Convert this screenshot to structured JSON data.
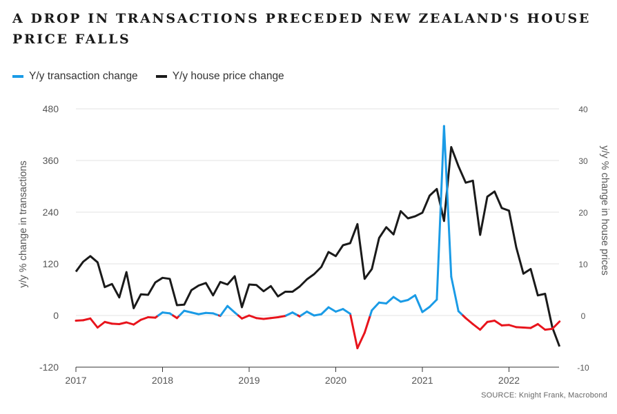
{
  "title": "A DROP IN TRANSACTIONS PRECEDED NEW ZEALAND'S HOUSE PRICE FALLS",
  "source": "SOURCE: Knight Frank, Macrobond",
  "colors": {
    "transactions_positive": "#1a9be6",
    "transactions_negative": "#e8141c",
    "house_prices": "#1a1a1a",
    "grid": "#e3e3e3"
  },
  "chart_data": {
    "type": "line",
    "title": "A DROP IN TRANSACTIONS PRECEDED NEW ZEALAND'S HOUSE PRICE FALLS",
    "legend": [
      {
        "name": "Y/y transaction change",
        "color": "#1a9be6"
      },
      {
        "name": "Y/y house price change",
        "color": "#1a1a1a"
      }
    ],
    "legend_position": "top-left",
    "grid": true,
    "x_ticks": [
      "2017",
      "2018",
      "2019",
      "2020",
      "2021",
      "2022"
    ],
    "ylabel_left": "y/y % change in transactions",
    "ylabel_right": "y/y % change in house prices",
    "ylim_left": [
      -120,
      480
    ],
    "ylim_right": [
      -10,
      40
    ],
    "yticks_left": [
      "480",
      "360",
      "240",
      "120",
      "0",
      "-120"
    ],
    "yticks_right": [
      "40",
      "30",
      "20",
      "10",
      "0",
      "-10"
    ],
    "series": [
      {
        "name": "Y/y transaction change",
        "axis": "left",
        "x": [
          "2017-01",
          "2017-02",
          "2017-03",
          "2017-04",
          "2017-05",
          "2017-06",
          "2017-07",
          "2017-08",
          "2017-09",
          "2017-10",
          "2017-11",
          "2017-12",
          "2018-01",
          "2018-02",
          "2018-03",
          "2018-04",
          "2018-05",
          "2018-06",
          "2018-07",
          "2018-08",
          "2018-09",
          "2018-10",
          "2018-11",
          "2018-12",
          "2019-01",
          "2019-02",
          "2019-03",
          "2019-04",
          "2019-05",
          "2019-06",
          "2019-07",
          "2019-08",
          "2019-09",
          "2019-10",
          "2019-11",
          "2019-12",
          "2020-01",
          "2020-02",
          "2020-03",
          "2020-04",
          "2020-05",
          "2020-06",
          "2020-07",
          "2020-08",
          "2020-09",
          "2020-10",
          "2020-11",
          "2020-12",
          "2021-01",
          "2021-02",
          "2021-03",
          "2021-04",
          "2021-05",
          "2021-06",
          "2021-07",
          "2021-08",
          "2021-09",
          "2021-10",
          "2021-11",
          "2021-12",
          "2022-01",
          "2022-02",
          "2022-03",
          "2022-04",
          "2022-05",
          "2022-06",
          "2022-07",
          "2022-08"
        ],
        "values": [
          -12,
          -11,
          -7,
          -28,
          -15,
          -19,
          -20,
          -16,
          -21,
          -10,
          -4,
          -5,
          7,
          5,
          -6,
          11,
          7,
          3,
          6,
          5,
          -1,
          22,
          7,
          -7,
          0,
          -6,
          -8,
          -6,
          -4,
          -1,
          7,
          -2,
          9,
          0,
          3,
          19,
          9,
          15,
          4,
          -76,
          -40,
          12,
          30,
          28,
          43,
          32,
          36,
          47,
          8,
          20,
          37,
          440,
          90,
          10,
          -6,
          -20,
          -33,
          -15,
          -12,
          -23,
          -22,
          -27,
          -28,
          -29,
          -20,
          -33,
          -31,
          -14
        ]
      },
      {
        "name": "Y/y house price change",
        "axis": "right",
        "x": [
          "2017-01",
          "2017-02",
          "2017-03",
          "2017-04",
          "2017-05",
          "2017-06",
          "2017-07",
          "2017-08",
          "2017-09",
          "2017-10",
          "2017-11",
          "2017-12",
          "2018-01",
          "2018-02",
          "2018-03",
          "2018-04",
          "2018-05",
          "2018-06",
          "2018-07",
          "2018-08",
          "2018-09",
          "2018-10",
          "2018-11",
          "2018-12",
          "2019-01",
          "2019-02",
          "2019-03",
          "2019-04",
          "2019-05",
          "2019-06",
          "2019-07",
          "2019-08",
          "2019-09",
          "2019-10",
          "2019-11",
          "2019-12",
          "2020-01",
          "2020-02",
          "2020-03",
          "2020-04",
          "2020-05",
          "2020-06",
          "2020-07",
          "2020-08",
          "2020-09",
          "2020-10",
          "2020-11",
          "2020-12",
          "2021-01",
          "2021-02",
          "2021-03",
          "2021-04",
          "2021-05",
          "2021-06",
          "2021-07",
          "2021-08",
          "2021-09",
          "2021-10",
          "2021-11",
          "2021-12",
          "2022-01",
          "2022-02",
          "2022-03",
          "2022-04",
          "2022-05",
          "2022-06",
          "2022-07",
          "2022-08"
        ],
        "values": [
          8.5,
          10.4,
          11.5,
          10.3,
          5.5,
          6.1,
          3.5,
          8.4,
          1.4,
          4.1,
          4.0,
          6.4,
          7.3,
          7.1,
          2.0,
          2.1,
          4.9,
          5.8,
          6.3,
          3.9,
          6.5,
          6.0,
          7.6,
          1.6,
          6.0,
          5.9,
          4.7,
          5.7,
          3.7,
          4.6,
          4.6,
          5.6,
          7.0,
          8.0,
          9.4,
          12.3,
          11.5,
          13.6,
          14.0,
          17.7,
          7.1,
          9.0,
          15.0,
          17.1,
          15.7,
          20.2,
          18.8,
          19.2,
          19.9,
          23.2,
          24.5,
          18.3,
          32.6,
          28.9,
          25.7,
          26.1,
          15.6,
          23.0,
          24.0,
          20.8,
          20.3,
          13.2,
          8.1,
          9.0,
          3.9,
          4.2,
          -2.3,
          -6.0
        ]
      }
    ]
  },
  "legend": {
    "transactions": "Y/y transaction change",
    "house_prices": "Y/y house price change"
  },
  "axes": {
    "ylabel_left": "y/y % change in transactions",
    "ylabel_right": "y/y % change in house prices"
  }
}
